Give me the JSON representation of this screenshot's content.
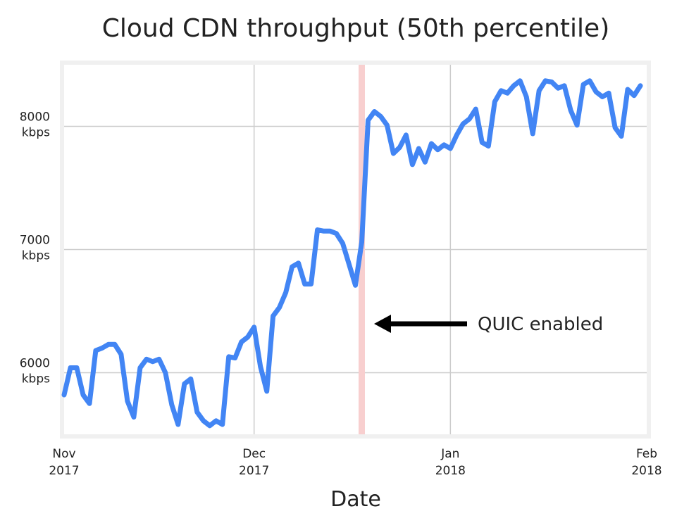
{
  "chart_data": {
    "type": "line",
    "title": "Cloud CDN throughput (50th percentile)",
    "xlabel": "Date",
    "ylabel": "",
    "x_range": [
      "2017-11-01",
      "2018-02-01"
    ],
    "ylim": [
      5500,
      8500
    ],
    "grid": true,
    "x_ticks": [
      {
        "date": "2017-11-01",
        "line1": "Nov",
        "line2": "2017"
      },
      {
        "date": "2017-12-01",
        "line1": "Dec",
        "line2": "2017"
      },
      {
        "date": "2018-01-01",
        "line1": "Jan",
        "line2": "2018"
      },
      {
        "date": "2018-02-01",
        "line1": "Feb",
        "line2": "2018"
      }
    ],
    "y_ticks": [
      {
        "value": 6000,
        "line1": "6000",
        "line2": "kbps"
      },
      {
        "value": 7000,
        "line1": "7000",
        "line2": "kbps"
      },
      {
        "value": 8000,
        "line1": "8000",
        "line2": "kbps"
      }
    ],
    "series": [
      {
        "color": "#4285F4",
        "points": [
          [
            "2017-11-01",
            5820
          ],
          [
            "2017-11-02",
            6040
          ],
          [
            "2017-11-03",
            6040
          ],
          [
            "2017-11-04",
            5820
          ],
          [
            "2017-11-05",
            5750
          ],
          [
            "2017-11-06",
            6180
          ],
          [
            "2017-11-07",
            6200
          ],
          [
            "2017-11-08",
            6230
          ],
          [
            "2017-11-09",
            6230
          ],
          [
            "2017-11-10",
            6150
          ],
          [
            "2017-11-11",
            5770
          ],
          [
            "2017-11-12",
            5640
          ],
          [
            "2017-11-13",
            6040
          ],
          [
            "2017-11-14",
            6110
          ],
          [
            "2017-11-15",
            6090
          ],
          [
            "2017-11-16",
            6110
          ],
          [
            "2017-11-17",
            6000
          ],
          [
            "2017-11-18",
            5740
          ],
          [
            "2017-11-19",
            5580
          ],
          [
            "2017-11-20",
            5910
          ],
          [
            "2017-11-21",
            5950
          ],
          [
            "2017-11-22",
            5680
          ],
          [
            "2017-11-23",
            5610
          ],
          [
            "2017-11-24",
            5570
          ],
          [
            "2017-11-25",
            5610
          ],
          [
            "2017-11-26",
            5580
          ],
          [
            "2017-11-27",
            6130
          ],
          [
            "2017-11-28",
            6120
          ],
          [
            "2017-11-29",
            6250
          ],
          [
            "2017-11-30",
            6290
          ],
          [
            "2017-12-01",
            6370
          ],
          [
            "2017-12-02",
            6050
          ],
          [
            "2017-12-03",
            5850
          ],
          [
            "2017-12-04",
            6460
          ],
          [
            "2017-12-05",
            6530
          ],
          [
            "2017-12-06",
            6650
          ],
          [
            "2017-12-07",
            6860
          ],
          [
            "2017-12-08",
            6890
          ],
          [
            "2017-12-09",
            6720
          ],
          [
            "2017-12-10",
            6720
          ],
          [
            "2017-12-11",
            7160
          ],
          [
            "2017-12-12",
            7150
          ],
          [
            "2017-12-13",
            7150
          ],
          [
            "2017-12-14",
            7130
          ],
          [
            "2017-12-15",
            7050
          ],
          [
            "2017-12-16",
            6880
          ],
          [
            "2017-12-17",
            6710
          ],
          [
            "2017-12-18",
            7060
          ],
          [
            "2017-12-19",
            8050
          ],
          [
            "2017-12-20",
            8120
          ],
          [
            "2017-12-21",
            8080
          ],
          [
            "2017-12-22",
            8010
          ],
          [
            "2017-12-23",
            7780
          ],
          [
            "2017-12-24",
            7830
          ],
          [
            "2017-12-25",
            7930
          ],
          [
            "2017-12-26",
            7690
          ],
          [
            "2017-12-27",
            7820
          ],
          [
            "2017-12-28",
            7710
          ],
          [
            "2017-12-29",
            7860
          ],
          [
            "2017-12-30",
            7810
          ],
          [
            "2017-12-31",
            7850
          ],
          [
            "2018-01-01",
            7820
          ],
          [
            "2018-01-02",
            7930
          ],
          [
            "2018-01-03",
            8020
          ],
          [
            "2018-01-04",
            8060
          ],
          [
            "2018-01-05",
            8140
          ],
          [
            "2018-01-06",
            7870
          ],
          [
            "2018-01-07",
            7840
          ],
          [
            "2018-01-08",
            8200
          ],
          [
            "2018-01-09",
            8290
          ],
          [
            "2018-01-10",
            8270
          ],
          [
            "2018-01-11",
            8330
          ],
          [
            "2018-01-12",
            8370
          ],
          [
            "2018-01-13",
            8240
          ],
          [
            "2018-01-14",
            7940
          ],
          [
            "2018-01-15",
            8290
          ],
          [
            "2018-01-16",
            8370
          ],
          [
            "2018-01-17",
            8360
          ],
          [
            "2018-01-18",
            8310
          ],
          [
            "2018-01-19",
            8330
          ],
          [
            "2018-01-20",
            8130
          ],
          [
            "2018-01-21",
            8010
          ],
          [
            "2018-01-22",
            8340
          ],
          [
            "2018-01-23",
            8370
          ],
          [
            "2018-01-24",
            8280
          ],
          [
            "2018-01-25",
            8240
          ],
          [
            "2018-01-26",
            8270
          ],
          [
            "2018-01-27",
            7990
          ],
          [
            "2018-01-28",
            7920
          ],
          [
            "2018-01-29",
            8300
          ],
          [
            "2018-01-30",
            8250
          ],
          [
            "2018-01-31",
            8330
          ]
        ]
      }
    ],
    "events": [
      {
        "date": "2017-12-18",
        "color": "#F8CFCF",
        "label": "QUIC enabled"
      }
    ]
  }
}
